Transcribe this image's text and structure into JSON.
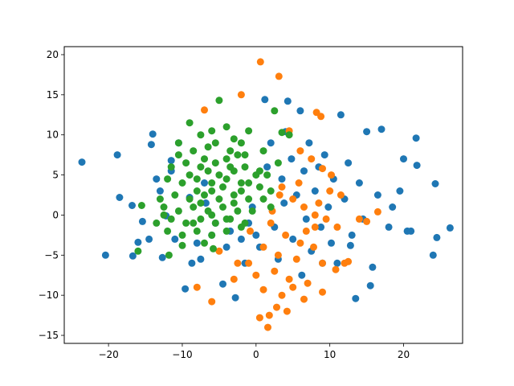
{
  "chart_data": {
    "type": "scatter",
    "title": "",
    "xlabel": "",
    "ylabel": "",
    "xlim": [
      -26,
      28
    ],
    "ylim": [
      -16,
      21
    ],
    "xticks": [
      -20,
      -10,
      0,
      10,
      20
    ],
    "yticks": [
      -15,
      -10,
      -5,
      0,
      5,
      10,
      15,
      20
    ],
    "grid": false,
    "legend": "none",
    "series": [
      {
        "color": "#1f77b4",
        "points": [
          [
            -23.6,
            6.6
          ],
          [
            -20.4,
            -5.0
          ],
          [
            -18.8,
            7.5
          ],
          [
            -18.5,
            2.2
          ],
          [
            -16.7,
            -5.1
          ],
          [
            -16.0,
            -3.4
          ],
          [
            -14.0,
            10.1
          ],
          [
            -14.2,
            8.8
          ],
          [
            -13.5,
            4.5
          ],
          [
            -13.0,
            3.0
          ],
          [
            -12.7,
            -5.3
          ],
          [
            -12.2,
            -0.1
          ],
          [
            -11.5,
            5.5
          ],
          [
            -11.0,
            -3.0
          ],
          [
            -10.5,
            9.0
          ],
          [
            -9.6,
            -9.2
          ],
          [
            -9.0,
            2.2
          ],
          [
            -8.7,
            -6.0
          ],
          [
            -7.5,
            -5.5
          ],
          [
            -7.0,
            4.0
          ],
          [
            -6.8,
            1.5
          ],
          [
            -6.0,
            -2.5
          ],
          [
            -5.5,
            -1.0
          ],
          [
            -4.5,
            -8.6
          ],
          [
            -4.0,
            -4.0
          ],
          [
            -3.5,
            -2.0
          ],
          [
            -2.8,
            -10.3
          ],
          [
            -2.0,
            -3.0
          ],
          [
            -1.5,
            -6.0
          ],
          [
            -1.0,
            -1.0
          ],
          [
            -0.5,
            1.0
          ],
          [
            0.0,
            -2.5
          ],
          [
            0.5,
            -4.0
          ],
          [
            1.2,
            14.4
          ],
          [
            1.5,
            6.0
          ],
          [
            2.0,
            9.0
          ],
          [
            2.5,
            -1.5
          ],
          [
            3.0,
            -5.5
          ],
          [
            3.5,
            4.5
          ],
          [
            4.0,
            10.4
          ],
          [
            4.3,
            14.2
          ],
          [
            4.8,
            7.0
          ],
          [
            5.0,
            -3.0
          ],
          [
            5.5,
            2.5
          ],
          [
            6.0,
            13.0
          ],
          [
            6.5,
            5.5
          ],
          [
            6.8,
            -0.5
          ],
          [
            7.2,
            9.0
          ],
          [
            7.5,
            -4.5
          ],
          [
            8.0,
            3.0
          ],
          [
            8.5,
            6.0
          ],
          [
            8.8,
            -1.5
          ],
          [
            9.3,
            7.5
          ],
          [
            9.8,
            1.0
          ],
          [
            10.2,
            -3.5
          ],
          [
            10.5,
            4.5
          ],
          [
            11.0,
            -6.0
          ],
          [
            11.5,
            12.5
          ],
          [
            12.0,
            2.0
          ],
          [
            12.5,
            6.5
          ],
          [
            13.0,
            -2.5
          ],
          [
            13.5,
            -10.4
          ],
          [
            14.0,
            4.0
          ],
          [
            14.5,
            -0.5
          ],
          [
            15.0,
            10.4
          ],
          [
            15.5,
            -8.8
          ],
          [
            15.8,
            -6.5
          ],
          [
            16.5,
            2.5
          ],
          [
            17.0,
            10.7
          ],
          [
            18.0,
            -1.5
          ],
          [
            18.5,
            1.0
          ],
          [
            19.5,
            3.0
          ],
          [
            20.0,
            7.0
          ],
          [
            20.5,
            -2.0
          ],
          [
            21.0,
            -2.0
          ],
          [
            21.7,
            9.6
          ],
          [
            21.8,
            6.2
          ],
          [
            24.3,
            3.9
          ],
          [
            24.0,
            -5.0
          ],
          [
            24.5,
            -2.8
          ],
          [
            26.3,
            -1.6
          ],
          [
            -15.4,
            -0.8
          ],
          [
            -16.8,
            1.2
          ],
          [
            -14.5,
            -3.0
          ],
          [
            -11.5,
            6.8
          ],
          [
            -8.0,
            -3.5
          ],
          [
            3.8,
            1.5
          ],
          [
            6.2,
            -7.5
          ],
          [
            9.0,
            -6.0
          ],
          [
            12.8,
            -3.8
          ]
        ]
      },
      {
        "color": "#ff7f0e",
        "points": [
          [
            0.6,
            19.1
          ],
          [
            3.1,
            17.3
          ],
          [
            -2.0,
            15.0
          ],
          [
            -7.0,
            13.1
          ],
          [
            8.2,
            12.8
          ],
          [
            8.8,
            12.3
          ],
          [
            4.5,
            10.5
          ],
          [
            6.0,
            8.0
          ],
          [
            7.5,
            7.0
          ],
          [
            9.0,
            5.8
          ],
          [
            10.2,
            5.0
          ],
          [
            3.5,
            3.5
          ],
          [
            5.0,
            2.0
          ],
          [
            6.5,
            1.0
          ],
          [
            8.0,
            0.0
          ],
          [
            9.5,
            -0.5
          ],
          [
            11.0,
            -1.5
          ],
          [
            14.0,
            -0.5
          ],
          [
            16.5,
            0.4
          ],
          [
            2.0,
            -1.0
          ],
          [
            4.0,
            -2.5
          ],
          [
            6.0,
            -3.5
          ],
          [
            1.0,
            -4.0
          ],
          [
            3.0,
            -5.0
          ],
          [
            5.5,
            -5.5
          ],
          [
            9.0,
            -6.0
          ],
          [
            12.0,
            -6.0
          ],
          [
            -1.0,
            -6.0
          ],
          [
            2.5,
            -7.0
          ],
          [
            4.5,
            -8.0
          ],
          [
            7.0,
            -8.5
          ],
          [
            9.0,
            -9.6
          ],
          [
            -8.0,
            -9.0
          ],
          [
            -6.0,
            -10.8
          ],
          [
            1.0,
            -9.3
          ],
          [
            3.5,
            -10.0
          ],
          [
            6.5,
            -10.5
          ],
          [
            2.8,
            -11.5
          ],
          [
            4.2,
            -12.0
          ],
          [
            1.8,
            -12.5
          ],
          [
            0.5,
            -12.8
          ],
          [
            1.6,
            -14.0
          ],
          [
            -3.0,
            -8.0
          ],
          [
            -5.0,
            -4.5
          ],
          [
            -2.5,
            -6.0
          ],
          [
            0.0,
            -7.5
          ],
          [
            5.0,
            -9.0
          ],
          [
            7.8,
            -4.0
          ],
          [
            10.8,
            -6.8
          ],
          [
            12.5,
            -5.8
          ],
          [
            15.0,
            -0.8
          ],
          [
            11.5,
            2.5
          ],
          [
            8.5,
            1.5
          ],
          [
            6.8,
            -2.0
          ],
          [
            3.2,
            2.5
          ],
          [
            2.2,
            0.5
          ],
          [
            -0.8,
            -2.0
          ],
          [
            5.8,
            4.0
          ],
          [
            8.0,
            -1.5
          ],
          [
            10.0,
            3.0
          ]
        ]
      },
      {
        "color": "#2ca02c",
        "points": [
          [
            -5.0,
            14.3
          ],
          [
            2.5,
            13.0
          ],
          [
            -9.0,
            11.5
          ],
          [
            -7.5,
            10.0
          ],
          [
            -4.0,
            11.0
          ],
          [
            -1.0,
            10.5
          ],
          [
            4.5,
            10.0
          ],
          [
            -10.5,
            9.0
          ],
          [
            -8.5,
            8.0
          ],
          [
            -6.5,
            8.5
          ],
          [
            -3.5,
            8.0
          ],
          [
            -1.5,
            7.5
          ],
          [
            1.0,
            8.0
          ],
          [
            -11.5,
            6.0
          ],
          [
            -9.5,
            6.5
          ],
          [
            -7.5,
            6.0
          ],
          [
            -5.5,
            6.5
          ],
          [
            -3.5,
            6.0
          ],
          [
            -1.5,
            6.0
          ],
          [
            0.5,
            5.5
          ],
          [
            -12.0,
            4.5
          ],
          [
            -10.0,
            4.0
          ],
          [
            -8.0,
            4.5
          ],
          [
            -6.0,
            4.0
          ],
          [
            -4.0,
            4.5
          ],
          [
            -2.0,
            4.0
          ],
          [
            0.5,
            3.5
          ],
          [
            2.0,
            3.0
          ],
          [
            -11.0,
            2.5
          ],
          [
            -9.0,
            2.0
          ],
          [
            -7.0,
            2.5
          ],
          [
            -5.0,
            2.0
          ],
          [
            -3.0,
            2.5
          ],
          [
            -1.0,
            2.0
          ],
          [
            1.0,
            2.0
          ],
          [
            -12.5,
            1.0
          ],
          [
            -10.5,
            0.5
          ],
          [
            -8.5,
            1.0
          ],
          [
            -6.5,
            0.5
          ],
          [
            -4.5,
            1.0
          ],
          [
            -2.5,
            0.5
          ],
          [
            -0.5,
            0.5
          ],
          [
            2.0,
            1.0
          ],
          [
            -13.5,
            -1.0
          ],
          [
            -11.5,
            -0.5
          ],
          [
            -9.5,
            -1.0
          ],
          [
            -7.5,
            -0.5
          ],
          [
            -5.5,
            -1.0
          ],
          [
            -3.5,
            -0.5
          ],
          [
            -1.5,
            -1.0
          ],
          [
            -12.0,
            -2.0
          ],
          [
            -10.0,
            -2.5
          ],
          [
            -8.0,
            -2.0
          ],
          [
            -6.0,
            -2.5
          ],
          [
            -4.0,
            -2.0
          ],
          [
            -15.5,
            1.2
          ],
          [
            -16.0,
            -4.5
          ],
          [
            -11.8,
            -5.0
          ],
          [
            -10.0,
            -3.8
          ],
          [
            -7.0,
            -3.5
          ],
          [
            -5.8,
            -4.2
          ],
          [
            -6.0,
            3.0
          ],
          [
            -5.0,
            5.0
          ],
          [
            -4.5,
            3.5
          ],
          [
            -3.0,
            5.5
          ],
          [
            -6.5,
            5.5
          ],
          [
            -7.0,
            7.0
          ],
          [
            -4.0,
            7.0
          ],
          [
            -2.5,
            7.5
          ],
          [
            -5.5,
            9.0
          ],
          [
            -3.0,
            9.5
          ],
          [
            -8.0,
            3.0
          ],
          [
            -9.0,
            5.0
          ],
          [
            -2.0,
            3.0
          ],
          [
            -1.0,
            4.0
          ],
          [
            0.0,
            5.0
          ],
          [
            1.5,
            5.0
          ],
          [
            3.0,
            6.5
          ],
          [
            -6.0,
            0.0
          ],
          [
            -4.0,
            -0.5
          ],
          [
            -3.0,
            1.5
          ],
          [
            -7.5,
            1.5
          ],
          [
            -8.5,
            -1.0
          ],
          [
            -2.0,
            -1.5
          ],
          [
            -13.0,
            2.0
          ],
          [
            -12.5,
            0.0
          ],
          [
            -10.5,
            7.5
          ],
          [
            -6.0,
            10.5
          ],
          [
            -2.0,
            9.0
          ],
          [
            3.5,
            10.3
          ]
        ]
      }
    ]
  }
}
